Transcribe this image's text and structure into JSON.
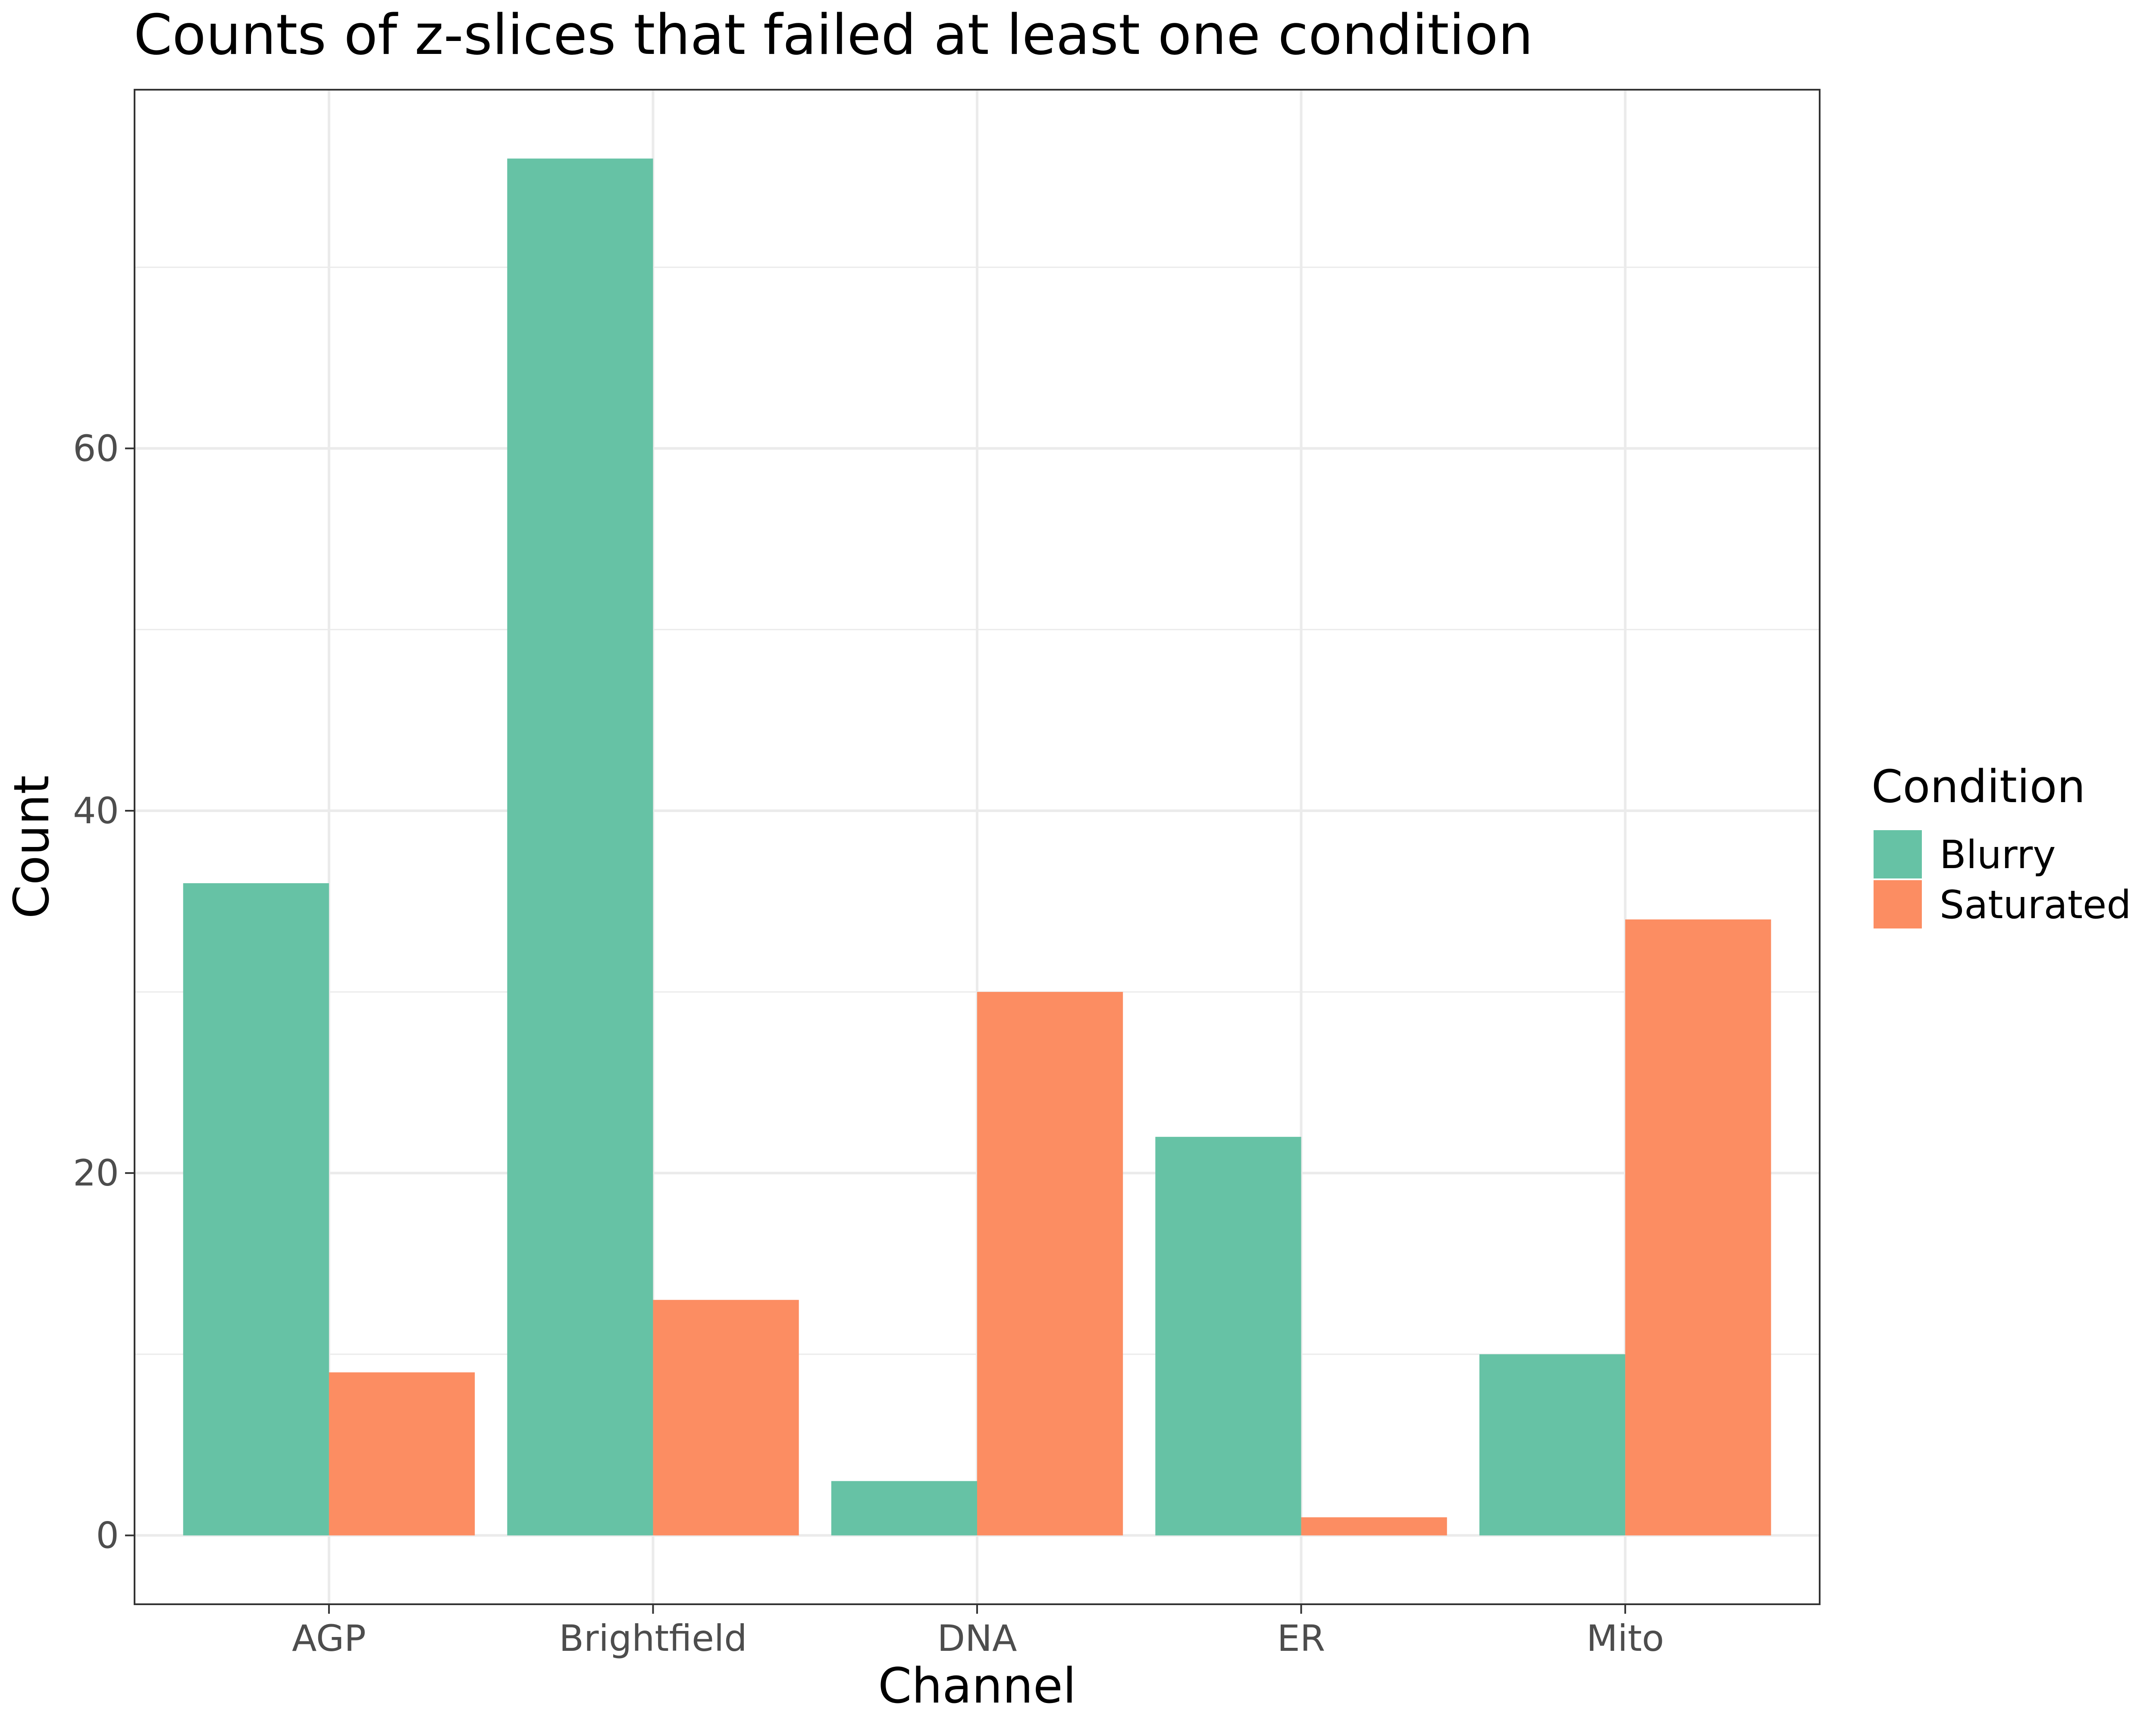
{
  "chart_data": {
    "type": "bar",
    "title": "Counts of z-slices that failed at least one condition",
    "xlabel": "Channel",
    "ylabel": "Count",
    "categories": [
      "AGP",
      "Brightfield",
      "DNA",
      "ER",
      "Mito"
    ],
    "series": [
      {
        "name": "Blurry",
        "color": "#66c2a5",
        "values": [
          36,
          76,
          3,
          22,
          10
        ]
      },
      {
        "name": "Saturated",
        "color": "#fc8d62",
        "values": [
          9,
          13,
          30,
          1,
          34
        ]
      }
    ],
    "y_ticks": [
      0,
      20,
      40,
      60
    ],
    "ylim": [
      -3.8,
      79.8
    ],
    "grid": true,
    "legend": {
      "title": "Condition",
      "position": "right"
    }
  }
}
